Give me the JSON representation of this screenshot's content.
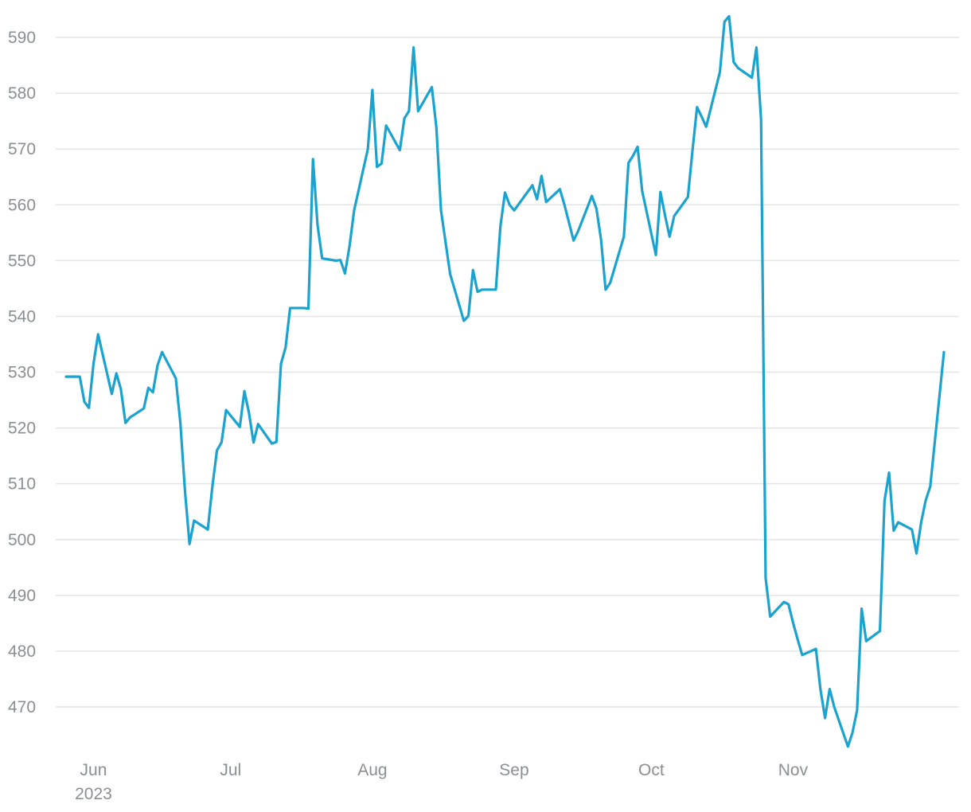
{
  "chart_data": {
    "type": "line",
    "title": "",
    "xlabel": "",
    "ylabel": "",
    "ylim": [
      462,
      594
    ],
    "xlim": [
      "2023-05-24",
      "2023-11-30"
    ],
    "grid": {
      "y": true,
      "x": false
    },
    "legend": "none",
    "colors": {
      "line": "#1ba3cf",
      "grid": "#e2e4e6",
      "tick_label": "#8a8f94"
    },
    "y_ticks": [
      470,
      480,
      490,
      500,
      510,
      520,
      530,
      540,
      550,
      560,
      570,
      580,
      590
    ],
    "x_ticks": [
      {
        "date": "2023-06-01",
        "label": "Jun",
        "sublabel": "2023"
      },
      {
        "date": "2023-07-01",
        "label": "Jul",
        "sublabel": ""
      },
      {
        "date": "2023-08-01",
        "label": "Aug",
        "sublabel": ""
      },
      {
        "date": "2023-09-01",
        "label": "Sep",
        "sublabel": ""
      },
      {
        "date": "2023-10-01",
        "label": "Oct",
        "sublabel": ""
      },
      {
        "date": "2023-11-01",
        "label": "Nov",
        "sublabel": ""
      }
    ],
    "series": [
      {
        "points": [
          [
            "2023-05-26",
            529.2
          ],
          [
            "2023-05-29",
            529.2
          ],
          [
            "2023-05-30",
            524.7
          ],
          [
            "2023-05-31",
            523.6
          ],
          [
            "2023-06-01",
            531.5
          ],
          [
            "2023-06-02",
            536.8
          ],
          [
            "2023-06-05",
            526.1
          ],
          [
            "2023-06-06",
            529.8
          ],
          [
            "2023-06-07",
            526.9
          ],
          [
            "2023-06-08",
            520.9
          ],
          [
            "2023-06-09",
            521.9
          ],
          [
            "2023-06-12",
            523.5
          ],
          [
            "2023-06-13",
            527.2
          ],
          [
            "2023-06-14",
            526.4
          ],
          [
            "2023-06-15",
            531.2
          ],
          [
            "2023-06-16",
            533.6
          ],
          [
            "2023-06-19",
            528.9
          ],
          [
            "2023-06-20",
            520.9
          ],
          [
            "2023-06-21",
            508.8
          ],
          [
            "2023-06-22",
            499.2
          ],
          [
            "2023-06-23",
            503.4
          ],
          [
            "2023-06-26",
            501.8
          ],
          [
            "2023-06-27",
            509.5
          ],
          [
            "2023-06-28",
            516.0
          ],
          [
            "2023-06-29",
            517.4
          ],
          [
            "2023-06-30",
            523.2
          ],
          [
            "2023-07-03",
            520.2
          ],
          [
            "2023-07-04",
            526.6
          ],
          [
            "2023-07-05",
            522.7
          ],
          [
            "2023-07-06",
            517.4
          ],
          [
            "2023-07-07",
            520.7
          ],
          [
            "2023-07-10",
            517.2
          ],
          [
            "2023-07-11",
            517.5
          ],
          [
            "2023-07-12",
            531.5
          ],
          [
            "2023-07-13",
            534.4
          ],
          [
            "2023-07-14",
            541.5
          ],
          [
            "2023-07-17",
            541.5
          ],
          [
            "2023-07-18",
            541.4
          ],
          [
            "2023-07-19",
            568.2
          ],
          [
            "2023-07-20",
            556.4
          ],
          [
            "2023-07-21",
            550.4
          ],
          [
            "2023-07-24",
            550.0
          ],
          [
            "2023-07-25",
            550.1
          ],
          [
            "2023-07-26",
            547.7
          ],
          [
            "2023-07-27",
            552.6
          ],
          [
            "2023-07-28",
            559.0
          ],
          [
            "2023-07-31",
            570.0
          ],
          [
            "2023-08-01",
            580.6
          ],
          [
            "2023-08-02",
            566.8
          ],
          [
            "2023-08-03",
            567.4
          ],
          [
            "2023-08-04",
            574.2
          ],
          [
            "2023-08-07",
            569.8
          ],
          [
            "2023-08-08",
            575.5
          ],
          [
            "2023-08-09",
            576.8
          ],
          [
            "2023-08-10",
            588.2
          ],
          [
            "2023-08-11",
            576.8
          ],
          [
            "2023-08-14",
            581.1
          ],
          [
            "2023-08-15",
            573.8
          ],
          [
            "2023-08-16",
            559.0
          ],
          [
            "2023-08-17",
            553.3
          ],
          [
            "2023-08-18",
            547.6
          ],
          [
            "2023-08-21",
            539.2
          ],
          [
            "2023-08-22",
            540.1
          ],
          [
            "2023-08-23",
            548.3
          ],
          [
            "2023-08-24",
            544.4
          ],
          [
            "2023-08-25",
            544.8
          ],
          [
            "2023-08-28",
            544.8
          ],
          [
            "2023-08-29",
            556.2
          ],
          [
            "2023-08-30",
            562.2
          ],
          [
            "2023-08-31",
            560.0
          ],
          [
            "2023-09-01",
            559.0
          ],
          [
            "2023-09-05",
            563.5
          ],
          [
            "2023-09-06",
            561.0
          ],
          [
            "2023-09-07",
            565.2
          ],
          [
            "2023-09-08",
            560.5
          ],
          [
            "2023-09-11",
            562.8
          ],
          [
            "2023-09-12",
            560.0
          ],
          [
            "2023-09-13",
            556.8
          ],
          [
            "2023-09-14",
            553.6
          ],
          [
            "2023-09-15",
            555.3
          ],
          [
            "2023-09-18",
            561.6
          ],
          [
            "2023-09-19",
            559.3
          ],
          [
            "2023-09-20",
            553.8
          ],
          [
            "2023-09-21",
            544.8
          ],
          [
            "2023-09-22",
            546.0
          ],
          [
            "2023-09-25",
            554.3
          ],
          [
            "2023-09-26",
            567.5
          ],
          [
            "2023-09-27",
            568.8
          ],
          [
            "2023-09-28",
            570.4
          ],
          [
            "2023-09-29",
            562.5
          ],
          [
            "2023-10-02",
            551.0
          ],
          [
            "2023-10-03",
            562.3
          ],
          [
            "2023-10-04",
            558.1
          ],
          [
            "2023-10-05",
            554.3
          ],
          [
            "2023-10-06",
            558.0
          ],
          [
            "2023-10-09",
            561.4
          ],
          [
            "2023-10-10",
            569.7
          ],
          [
            "2023-10-11",
            577.5
          ],
          [
            "2023-10-12",
            575.8
          ],
          [
            "2023-10-13",
            574.0
          ],
          [
            "2023-10-16",
            583.8
          ],
          [
            "2023-10-17",
            592.8
          ],
          [
            "2023-10-18",
            593.8
          ],
          [
            "2023-10-19",
            585.6
          ],
          [
            "2023-10-20",
            584.5
          ],
          [
            "2023-10-23",
            582.8
          ],
          [
            "2023-10-24",
            588.2
          ],
          [
            "2023-10-25",
            575.3
          ],
          [
            "2023-10-26",
            493.1
          ],
          [
            "2023-10-27",
            486.2
          ],
          [
            "2023-10-30",
            488.8
          ],
          [
            "2023-10-31",
            488.4
          ],
          [
            "2023-11-01",
            485.1
          ],
          [
            "2023-11-02",
            482.1
          ],
          [
            "2023-11-03",
            479.3
          ],
          [
            "2023-11-06",
            480.4
          ],
          [
            "2023-11-07",
            473.1
          ],
          [
            "2023-11-08",
            468.0
          ],
          [
            "2023-11-09",
            473.2
          ],
          [
            "2023-11-10",
            470.0
          ],
          [
            "2023-11-13",
            462.9
          ],
          [
            "2023-11-14",
            465.4
          ],
          [
            "2023-11-15",
            469.4
          ],
          [
            "2023-11-16",
            487.6
          ],
          [
            "2023-11-17",
            481.8
          ],
          [
            "2023-11-20",
            483.6
          ],
          [
            "2023-11-21",
            506.9
          ],
          [
            "2023-11-22",
            512.0
          ],
          [
            "2023-11-23",
            501.6
          ],
          [
            "2023-11-24",
            503.1
          ],
          [
            "2023-11-27",
            501.8
          ],
          [
            "2023-11-28",
            497.5
          ],
          [
            "2023-11-29",
            503.0
          ],
          [
            "2023-11-30",
            507.0
          ],
          [
            "2023-12-01",
            509.5
          ],
          [
            "2023-12-04",
            533.6
          ]
        ]
      }
    ]
  }
}
